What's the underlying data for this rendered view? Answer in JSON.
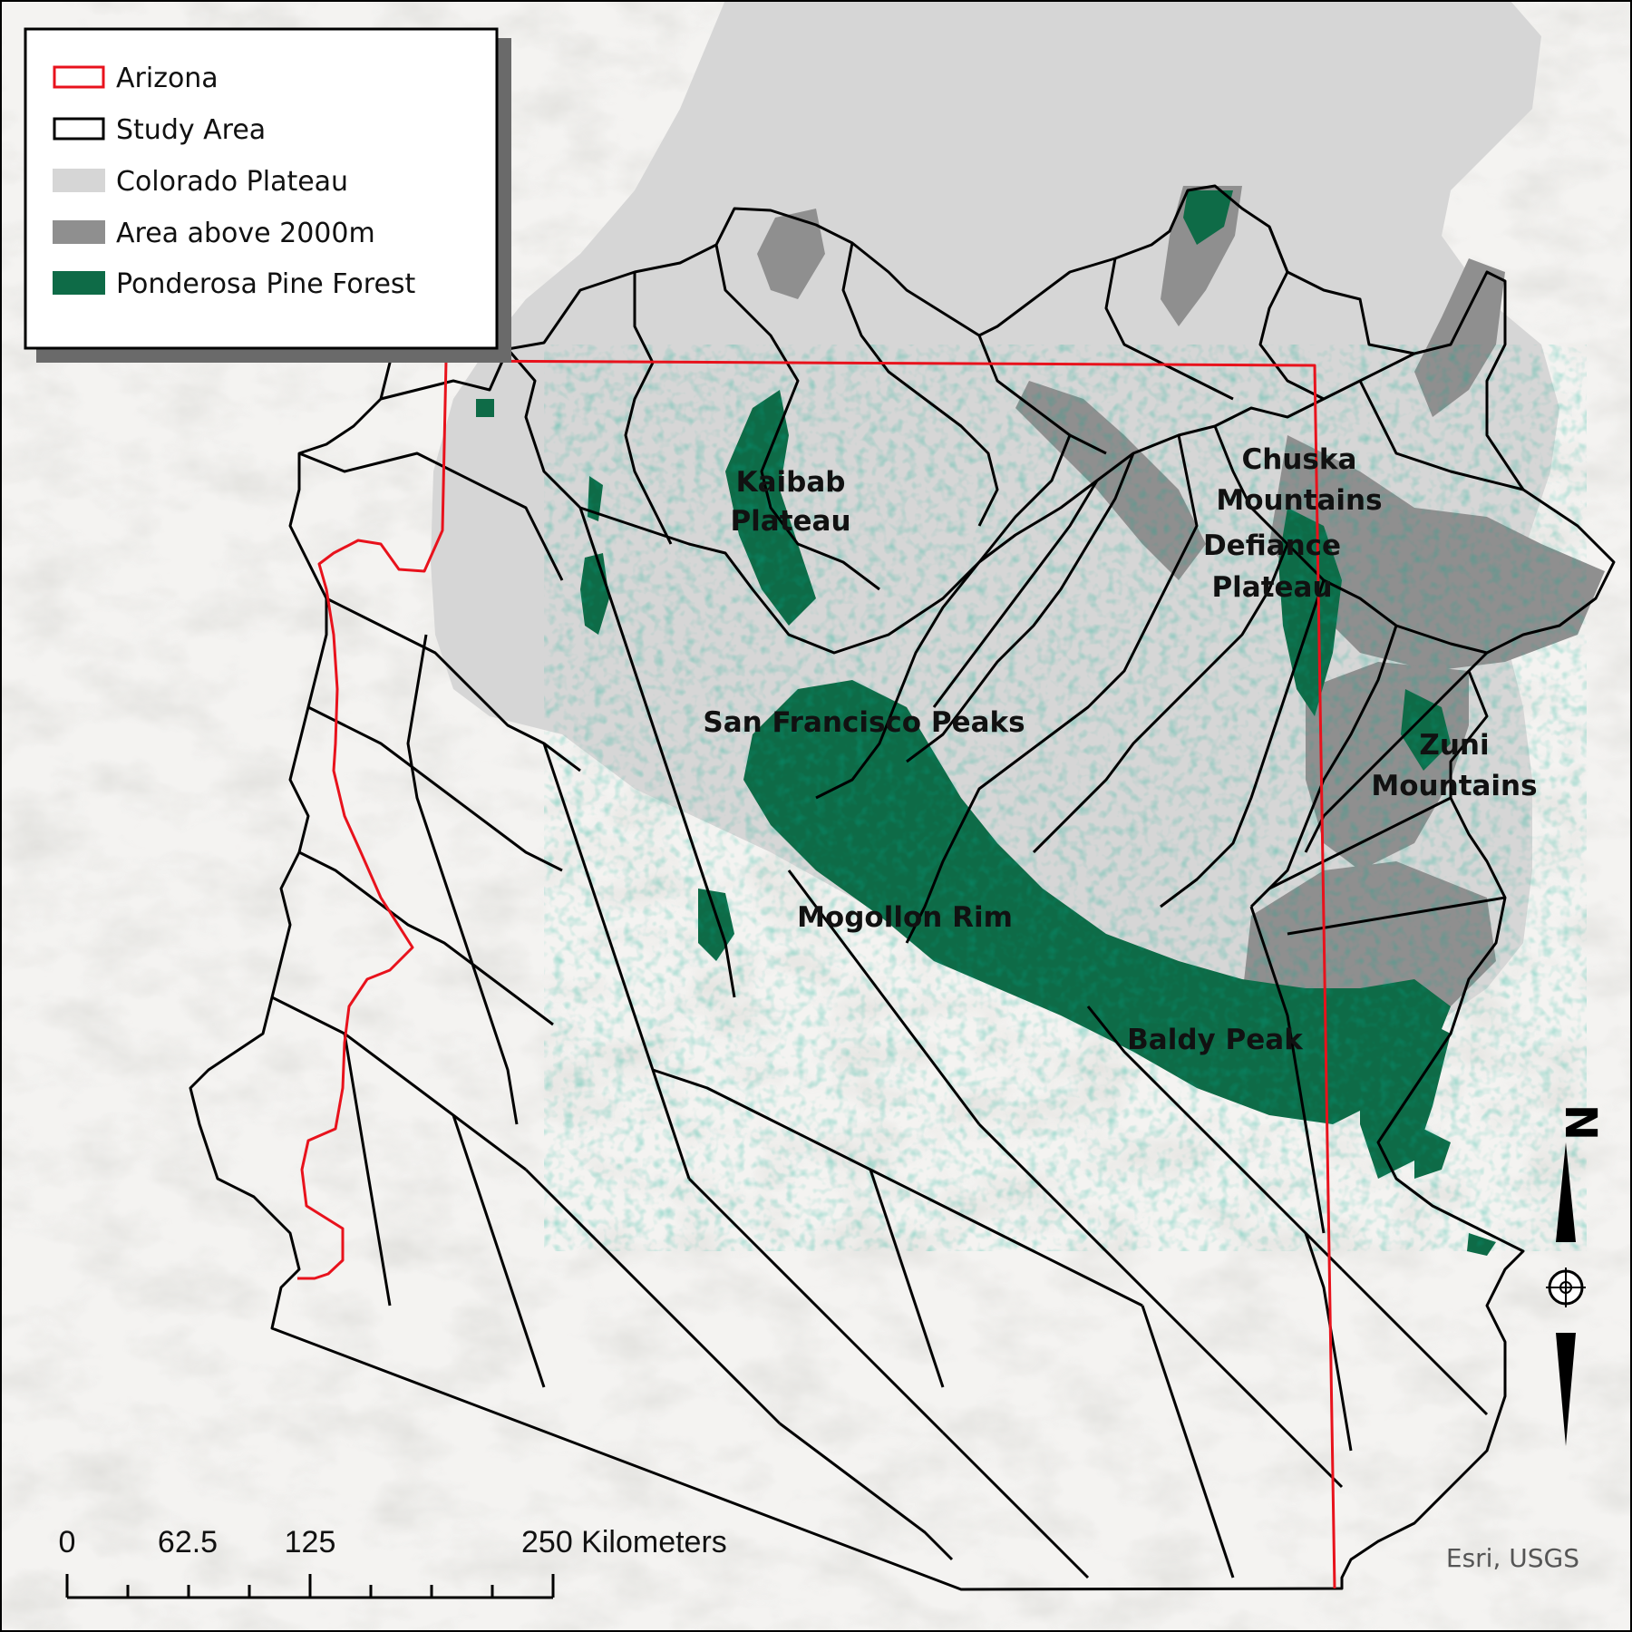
{
  "legend": {
    "items": [
      {
        "label": "Arizona",
        "swatch": "outline",
        "color": "#e8121c"
      },
      {
        "label": "Study Area",
        "swatch": "outline",
        "color": "#000000"
      },
      {
        "label": "Colorado Plateau",
        "swatch": "fill",
        "color": "#d6d6d6"
      },
      {
        "label": "Area above 2000m",
        "swatch": "fill",
        "color": "#8f8f8f"
      },
      {
        "label": "Ponderosa Pine Forest",
        "swatch": "fill",
        "color": "#0e6b47"
      }
    ]
  },
  "places": {
    "kaibab_1": "Kaibab",
    "kaibab_2": "Plateau",
    "chuska_1": "Chuska",
    "chuska_2": "Mountains",
    "defiance_1": "Defiance",
    "defiance_2": "Plateau",
    "sanfrancisco": "San Francisco Peaks",
    "zuni_1": "Zuni",
    "zuni_2": "Mountains",
    "mogollon": "Mogollon Rim",
    "baldy": "Baldy Peak"
  },
  "scale_bar": {
    "labels": [
      "0",
      "62.5",
      "125",
      "250 Kilometers"
    ]
  },
  "north_arrow": {
    "letter": "N"
  },
  "credit": "Esri, USGS",
  "colors": {
    "background": "#f4f3f1",
    "colorado_plateau": "#d6d6d6",
    "above_2000m": "#8f8f8f",
    "ponderosa": "#0e6b47",
    "arizona_outline": "#e8121c",
    "study_area_outline": "#000000"
  }
}
